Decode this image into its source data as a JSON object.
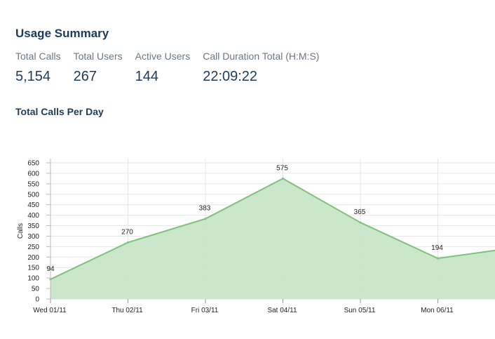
{
  "summary": {
    "title": "Usage Summary",
    "stats": [
      {
        "label": "Total Calls",
        "value": "5,154"
      },
      {
        "label": "Total Users",
        "value": "267"
      },
      {
        "label": "Active Users",
        "value": "144"
      },
      {
        "label": "Call Duration Total (H:M:S)",
        "value": "22:09:22"
      }
    ]
  },
  "chart_title": "Total Calls Per Day",
  "colors": {
    "line": "#7cc27a",
    "fill": "#c8e6c6",
    "grid": "#e6e6e6",
    "text_dark": "#1f3b57"
  },
  "chart_data": {
    "type": "area",
    "title": "Total Calls Per Day",
    "xlabel": "",
    "ylabel": "Calls",
    "categories": [
      "Wed 01/11",
      "Thu 02/11",
      "Fri 03/11",
      "Sat 04/11",
      "Sun 05/11",
      "Mon 06/11"
    ],
    "values": [
      94,
      270,
      383,
      575,
      365,
      194
    ],
    "trailing_value": 245,
    "ylim": [
      0,
      650
    ],
    "yticks": [
      0,
      50,
      100,
      150,
      200,
      250,
      300,
      350,
      400,
      450,
      500,
      550,
      600,
      650
    ],
    "grid": true,
    "legend": "none"
  }
}
